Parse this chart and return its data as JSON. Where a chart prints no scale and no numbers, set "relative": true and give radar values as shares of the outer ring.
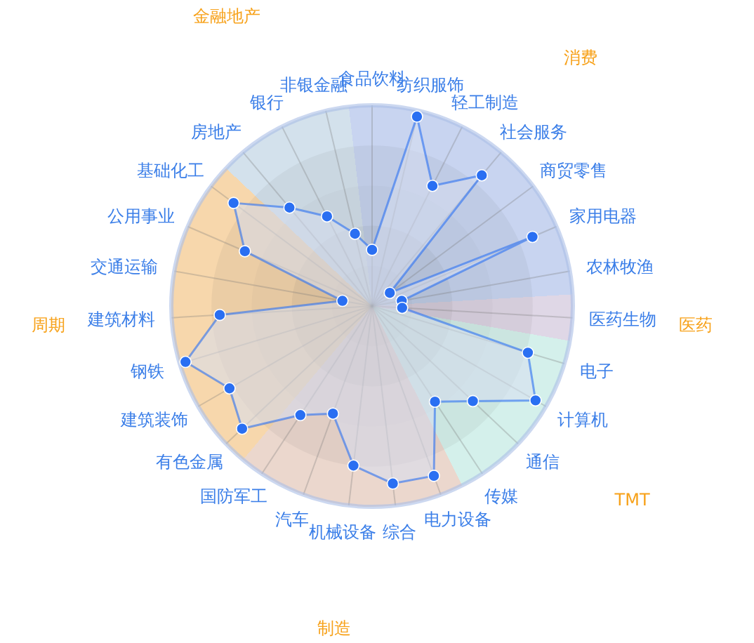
{
  "chart_data": {
    "type": "radar",
    "relative": true,
    "grid": true,
    "marker": "circle",
    "categories": [
      "食品饮料",
      "纺织服饰",
      "轻工制造",
      "社会服务",
      "商贸零售",
      "家用电器",
      "农林牧渔",
      "医药生物",
      "电子",
      "计算机",
      "通信",
      "传媒",
      "电力设备",
      "综合",
      "机械设备",
      "汽车",
      "国防军工",
      "有色金属",
      "建筑装饰",
      "钢铁",
      "建筑材料",
      "交通运输",
      "公用事业",
      "基础化工",
      "房地产",
      "银行",
      "非银金融"
    ],
    "series": [
      {
        "color": "#2a6ff2",
        "values": [
          0.28,
          0.97,
          0.67,
          0.85,
          0.11,
          0.87,
          0.15,
          0.15,
          0.81,
          0.94,
          0.69,
          0.57,
          0.9,
          0.89,
          0.8,
          0.57,
          0.65,
          0.89,
          0.82,
          0.97,
          0.76,
          0.15,
          0.69,
          0.86,
          0.64,
          0.5,
          0.37
        ]
      }
    ],
    "annotations": [
      "消费",
      "医药",
      "TMT",
      "制造",
      "周期",
      "金融地产"
    ]
  }
}
